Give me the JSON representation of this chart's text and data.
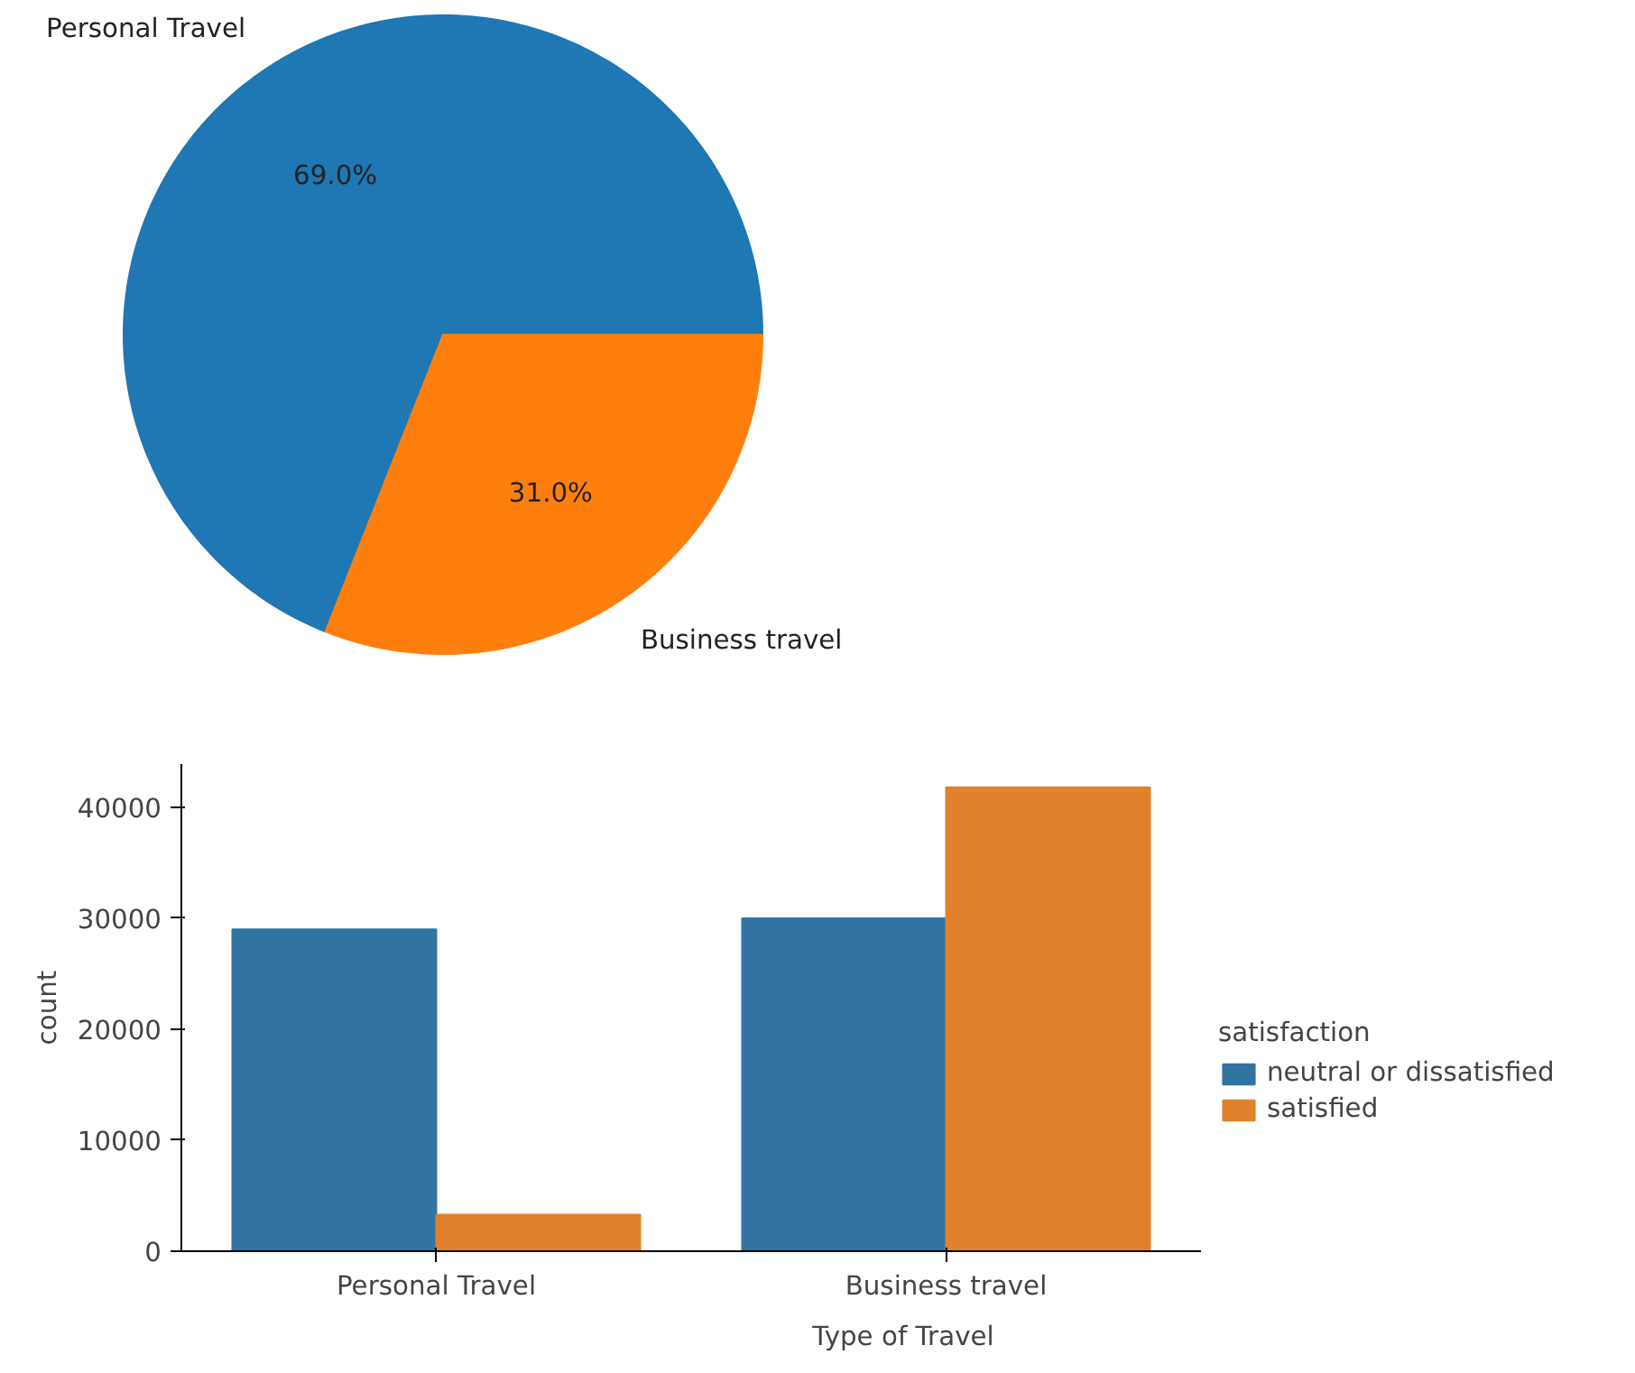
{
  "chart_data": [
    {
      "type": "pie",
      "categories": [
        "Personal Travel",
        "Business travel"
      ],
      "values": [
        69.0,
        31.0
      ],
      "colors": [
        "#1f77b4",
        "#ff7f0e"
      ],
      "value_labels": [
        "69.0%",
        "31.0%"
      ]
    },
    {
      "type": "bar",
      "categories": [
        "Personal Travel",
        "Business travel"
      ],
      "xlabel": "Type of Travel",
      "ylabel": "count",
      "legend_title": "satisfaction",
      "legend": "right",
      "grid": false,
      "series": [
        {
          "name": "neutral or dissatisfied",
          "color": "#3274a1",
          "values": [
            29000,
            30000
          ]
        },
        {
          "name": "satisfied",
          "color": "#e1812c",
          "values": [
            3300,
            41800
          ]
        }
      ],
      "ylim": [
        0,
        43900
      ],
      "yticks": [
        0,
        10000,
        20000,
        30000,
        40000
      ]
    }
  ]
}
